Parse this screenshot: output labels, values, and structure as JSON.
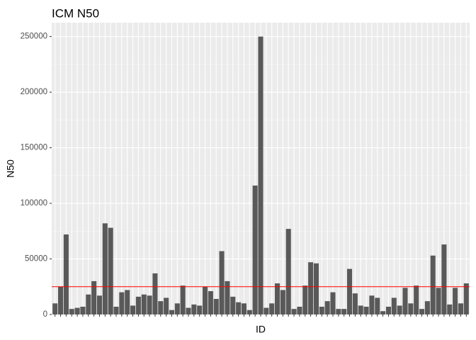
{
  "chart_data": {
    "type": "bar",
    "title": "ICM N50",
    "xlabel": "ID",
    "ylabel": "N50",
    "x_tick_labels_shown": false,
    "ylim": [
      0,
      262500
    ],
    "yticks": [
      0,
      50000,
      100000,
      150000,
      200000,
      250000
    ],
    "ytick_labels": [
      "0",
      "50000",
      "100000",
      "150000",
      "200000",
      "250000"
    ],
    "grid": true,
    "colors": {
      "panel_background": "#ebebeb",
      "grid_major": "#ffffff",
      "grid_minor": "#f5f5f5",
      "bar_fill": "#595959",
      "reference_line": "#ff0000"
    },
    "reference_line": {
      "orientation": "horizontal",
      "value": 25000
    },
    "values": [
      10000,
      25000,
      72000,
      5000,
      6000,
      7000,
      18000,
      30000,
      17000,
      82000,
      78000,
      7000,
      20000,
      22000,
      8000,
      16000,
      18000,
      17000,
      37000,
      12000,
      15000,
      4000,
      10000,
      26000,
      6000,
      9000,
      8000,
      25000,
      21000,
      14000,
      57000,
      30000,
      16000,
      11000,
      10000,
      4000,
      116000,
      250000,
      6000,
      10000,
      28000,
      22000,
      77000,
      5000,
      7000,
      26000,
      47000,
      46000,
      7000,
      12000,
      20000,
      5000,
      5000,
      41000,
      19000,
      8000,
      7000,
      17000,
      15000,
      3000,
      7000,
      15000,
      8000,
      24000,
      10000,
      26000,
      5000,
      12000,
      53000,
      24000,
      63000,
      9000,
      24000,
      10000,
      28000
    ]
  }
}
